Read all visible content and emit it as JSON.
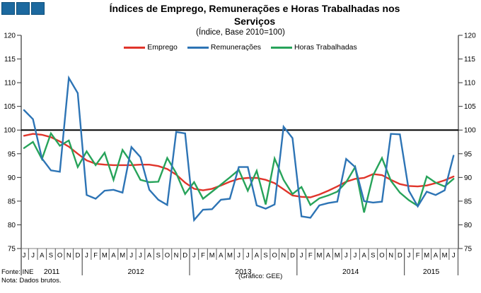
{
  "footer": {
    "source": "Fonte: INE",
    "note": "Nota: Dados brutos.",
    "credit": "(Gráfico: GEE)"
  },
  "logo": {
    "squares": 3,
    "fill": "#1c699f",
    "border": "#0e4f79"
  },
  "chart_data": {
    "type": "line",
    "title_line1": "Índices de Emprego, Remunerações e Horas Trabalhadas nos",
    "title_line2": "Serviços",
    "subtitle": "(Índice, Base 2010=100)",
    "xlabel": "",
    "ylabel": "",
    "ylim": [
      75,
      120
    ],
    "ytick_step": 5,
    "yticks_both_sides": true,
    "grid": false,
    "legend_position": "top",
    "reference_line": 100,
    "reference_line_color": "#000000",
    "axis_color": "#333333",
    "x_axis_color": "#808080",
    "x_months": [
      "J",
      "J",
      "A",
      "S",
      "O",
      "N",
      "D",
      "J",
      "F",
      "M",
      "A",
      "M",
      "J",
      "J",
      "A",
      "S",
      "O",
      "N",
      "D",
      "J",
      "F",
      "M",
      "A",
      "M",
      "J",
      "J",
      "A",
      "S",
      "O",
      "N",
      "D",
      "J",
      "F",
      "M",
      "A",
      "M",
      "J",
      "J",
      "A",
      "S",
      "O",
      "N",
      "D",
      "J",
      "F",
      "M",
      "A",
      "M",
      "J"
    ],
    "years": [
      {
        "label": "2011",
        "months": 7
      },
      {
        "label": "2012",
        "months": 12
      },
      {
        "label": "2013",
        "months": 12
      },
      {
        "label": "2014",
        "months": 12
      },
      {
        "label": "2015",
        "months": 6
      }
    ],
    "series": [
      {
        "name": "Emprego",
        "color": "#e0352b",
        "values": [
          98.8,
          99.2,
          99.0,
          98.5,
          97.6,
          96.5,
          95.0,
          93.6,
          92.9,
          92.7,
          92.6,
          92.6,
          92.6,
          92.7,
          92.7,
          92.4,
          91.8,
          90.6,
          88.9,
          87.6,
          87.3,
          87.6,
          88.3,
          89.1,
          89.7,
          89.9,
          89.9,
          89.5,
          88.8,
          87.5,
          86.2,
          85.9,
          85.8,
          86.4,
          87.2,
          88.1,
          89.1,
          89.7,
          89.9,
          90.7,
          90.5,
          89.5,
          88.6,
          88.2,
          88.1,
          88.3,
          88.8,
          89.4,
          90.2
        ]
      },
      {
        "name": "Remunerações",
        "color": "#2d74b5",
        "values": [
          104.2,
          102.3,
          94.0,
          91.5,
          91.2,
          111.0,
          107.8,
          86.3,
          85.5,
          87.2,
          87.4,
          86.8,
          96.4,
          94.3,
          87.4,
          85.3,
          84.2,
          99.6,
          99.3,
          81.0,
          83.2,
          83.3,
          85.3,
          85.5,
          92.2,
          92.2,
          84.1,
          83.4,
          84.3,
          100.7,
          98.3,
          81.8,
          81.5,
          84.1,
          84.6,
          84.9,
          93.9,
          92.2,
          85.0,
          84.7,
          84.9,
          99.2,
          99.1,
          87.2,
          83.9,
          87.0,
          86.3,
          87.3,
          94.6
        ]
      },
      {
        "name": "Horas Trabalhadas",
        "color": "#27a35a",
        "values": [
          96.2,
          97.5,
          93.9,
          99.3,
          96.7,
          97.8,
          92.2,
          95.5,
          92.6,
          95.2,
          89.5,
          95.8,
          93.1,
          89.5,
          89.0,
          89.1,
          94.1,
          90.9,
          86.5,
          89.0,
          85.5,
          87.0,
          88.5,
          90.0,
          91.6,
          87.2,
          91.4,
          84.3,
          94.0,
          89.5,
          86.5,
          88.0,
          84.2,
          85.6,
          86.2,
          87.0,
          89.0,
          92.2,
          82.6,
          90.4,
          94.1,
          89.3,
          86.8,
          85.2,
          84.0,
          90.2,
          88.9,
          88.1,
          89.7
        ]
      }
    ]
  }
}
